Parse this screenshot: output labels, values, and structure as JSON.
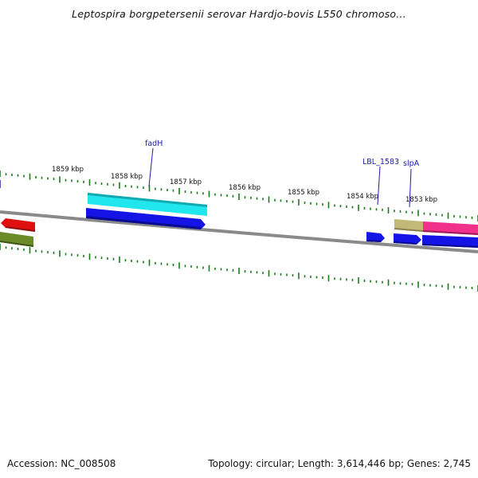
{
  "title": "Leptospira borgpetersenii serovar Hardjo-bovis L550 chromoso...",
  "footer": {
    "accession": "Accession: NC_008508",
    "topology": "Topology: circular; Length: 3,614,446 bp; Genes: 2,745"
  },
  "ruler": {
    "labels": [
      "1859 kbp",
      "1858 kbp",
      "1857 kbp",
      "1856 kbp",
      "1855 kbp",
      "1854 kbp",
      "1853 kbp"
    ],
    "tick_color": "#1a7a1a"
  },
  "backbone_color": "#8c8c8c",
  "gene_labels": {
    "fadH": "fadH",
    "lbl_1583": "LBL_1583",
    "slpA": "slpA"
  },
  "feature_colors": {
    "red": "#e01010",
    "olive": "#6b8a28",
    "cyan": "#22e0e8",
    "blue": "#1414e6",
    "khaki": "#c2b878",
    "pink": "#f0308a"
  }
}
